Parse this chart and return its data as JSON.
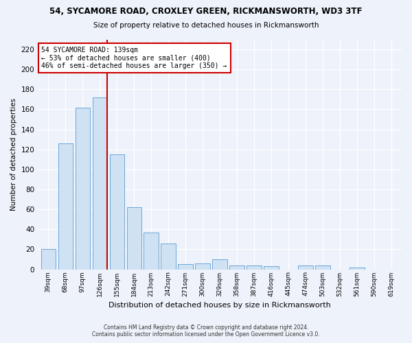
{
  "title": "54, SYCAMORE ROAD, CROXLEY GREEN, RICKMANSWORTH, WD3 3TF",
  "subtitle": "Size of property relative to detached houses in Rickmansworth",
  "xlabel": "Distribution of detached houses by size in Rickmansworth",
  "ylabel": "Number of detached properties",
  "bar_labels": [
    "39sqm",
    "68sqm",
    "97sqm",
    "126sqm",
    "155sqm",
    "184sqm",
    "213sqm",
    "242sqm",
    "271sqm",
    "300sqm",
    "329sqm",
    "358sqm",
    "387sqm",
    "416sqm",
    "445sqm",
    "474sqm",
    "503sqm",
    "532sqm",
    "561sqm",
    "590sqm",
    "619sqm"
  ],
  "bar_values": [
    20,
    126,
    162,
    172,
    115,
    62,
    37,
    26,
    5,
    6,
    10,
    4,
    4,
    3,
    0,
    4,
    4,
    0,
    2,
    0,
    0
  ],
  "bar_color": "#cfe2f3",
  "bar_edge_color": "#5b9bd5",
  "vline_color": "#cc0000",
  "annotation_title": "54 SYCAMORE ROAD: 139sqm",
  "annotation_line1": "← 53% of detached houses are smaller (400)",
  "annotation_line2": "46% of semi-detached houses are larger (350) →",
  "annotation_box_color": "white",
  "annotation_box_edge": "#cc0000",
  "ylim": [
    0,
    230
  ],
  "yticks": [
    0,
    20,
    40,
    60,
    80,
    100,
    120,
    140,
    160,
    180,
    200,
    220
  ],
  "footer1": "Contains HM Land Registry data © Crown copyright and database right 2024.",
  "footer2": "Contains public sector information licensed under the Open Government Licence v3.0.",
  "background_color": "#eef2fa"
}
